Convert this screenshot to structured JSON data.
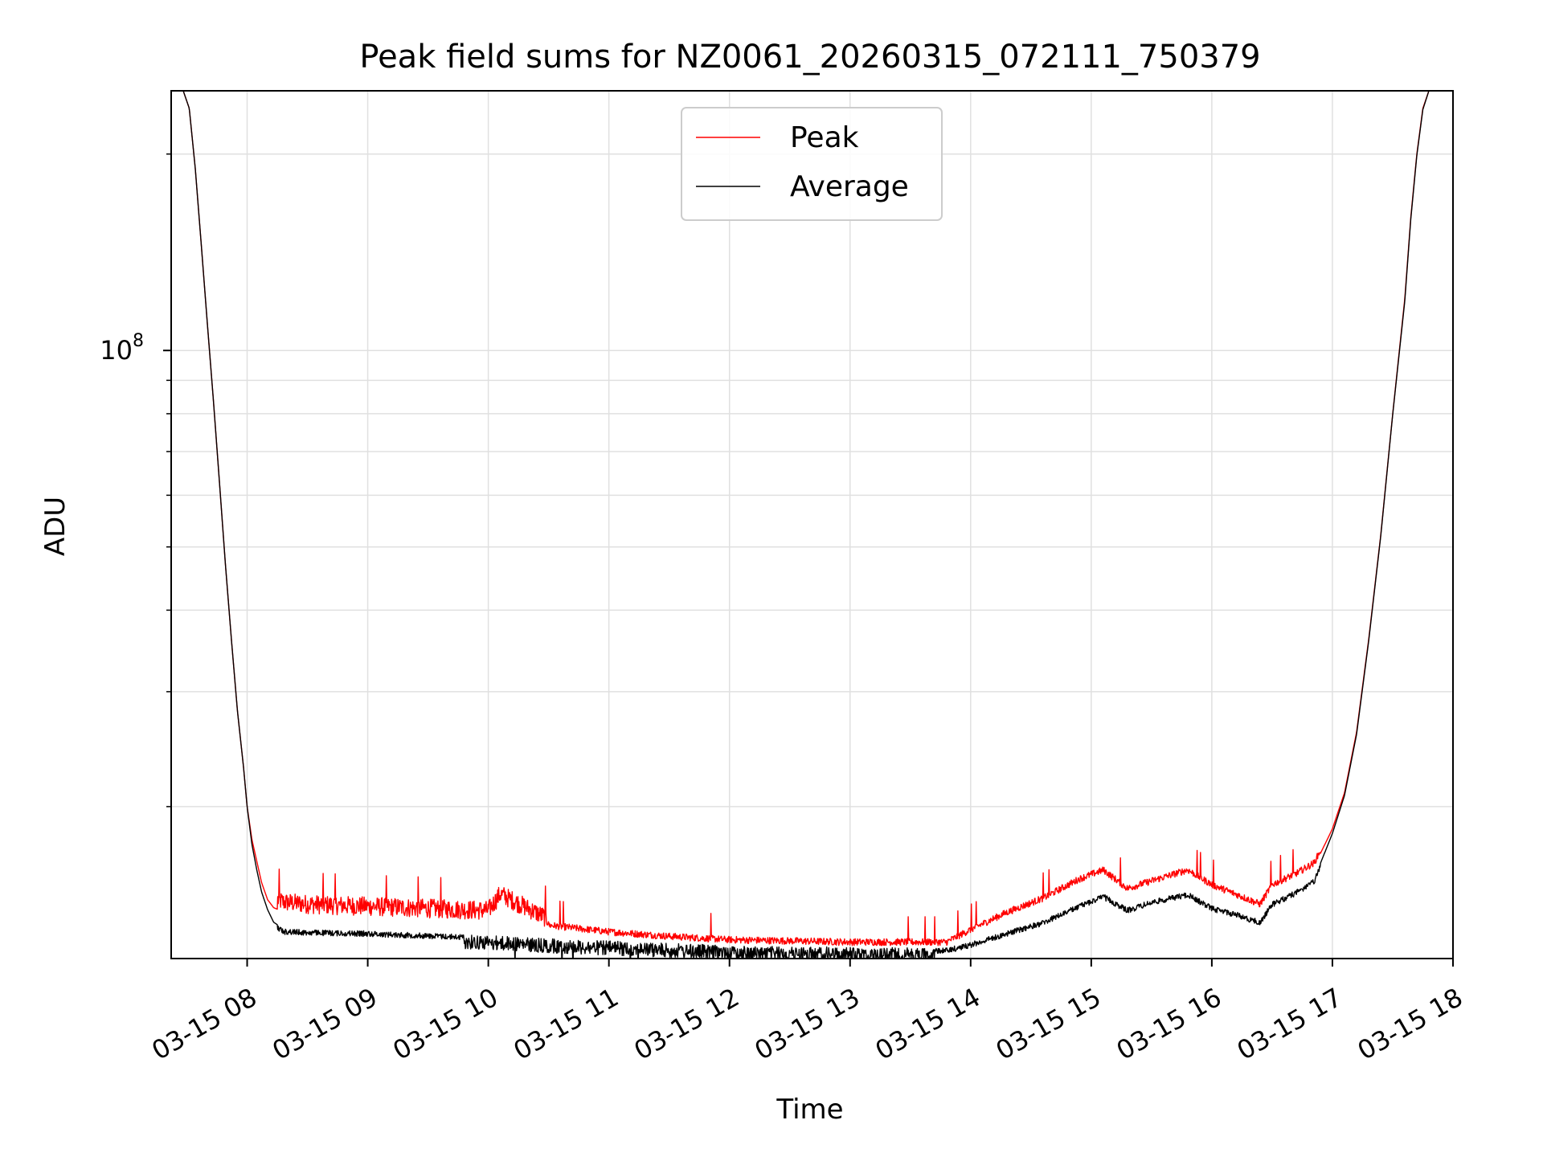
{
  "chart_data": {
    "type": "line",
    "title": "Peak field sums for NZ0061_20260315_072111_750379",
    "xlabel": "Time",
    "ylabel": "ADU",
    "yscale": "log",
    "grid": true,
    "xlim_hours": [
      7.37,
      18.0
    ],
    "ylim": [
      11700000,
      250000000
    ],
    "x_ticks": [
      {
        "hour": 8,
        "label": "03-15 08"
      },
      {
        "hour": 9,
        "label": "03-15 09"
      },
      {
        "hour": 10,
        "label": "03-15 10"
      },
      {
        "hour": 11,
        "label": "03-15 11"
      },
      {
        "hour": 12,
        "label": "03-15 12"
      },
      {
        "hour": 13,
        "label": "03-15 13"
      },
      {
        "hour": 14,
        "label": "03-15 14"
      },
      {
        "hour": 15,
        "label": "03-15 15"
      },
      {
        "hour": 16,
        "label": "03-15 16"
      },
      {
        "hour": 17,
        "label": "03-15 17"
      },
      {
        "hour": 18,
        "label": "03-15 18"
      }
    ],
    "y_major_tick": {
      "value": 100000000,
      "base": "10",
      "exponent": "8"
    },
    "legend": {
      "position": "upper-center",
      "entries": [
        "Peak",
        "Average"
      ]
    },
    "series": [
      {
        "name": "Peak",
        "color": "#ff0000",
        "x_hours": [
          7.47,
          7.52,
          7.57,
          7.62,
          7.67,
          7.72,
          7.77,
          7.82,
          7.87,
          7.92,
          7.97,
          8.0,
          8.04,
          8.08,
          8.12,
          8.17,
          8.22,
          8.3,
          8.5,
          9.0,
          9.5,
          10.0,
          10.1,
          10.5,
          11.0,
          11.5,
          12.0,
          12.5,
          13.0,
          13.5,
          13.8,
          14.0,
          14.3,
          14.6,
          14.9,
          15.1,
          15.3,
          15.5,
          15.8,
          16.0,
          16.2,
          16.4,
          16.5,
          16.7,
          16.85,
          17.0,
          17.1,
          17.2,
          17.3,
          17.4,
          17.5,
          17.6,
          17.65,
          17.7,
          17.75,
          17.8
        ],
        "values": [
          250000000,
          235000000,
          190000000,
          145000000,
          110000000,
          84000000,
          63000000,
          47000000,
          36000000,
          28000000,
          23000000,
          20000000,
          17800000,
          16500000,
          15300000,
          14400000,
          14000000,
          13800000,
          13700000,
          13600000,
          13500000,
          13400000,
          14200000,
          13000000,
          12700000,
          12500000,
          12350000,
          12300000,
          12250000,
          12250000,
          12250000,
          12800000,
          13600000,
          14300000,
          15300000,
          15800000,
          14800000,
          15200000,
          15800000,
          15000000,
          14500000,
          14000000,
          15000000,
          15600000,
          16200000,
          18500000,
          21000000,
          26000000,
          36000000,
          52000000,
          80000000,
          120000000,
          160000000,
          200000000,
          235000000,
          250000000
        ]
      },
      {
        "name": "Average",
        "color": "#000000",
        "x_hours": [
          7.47,
          7.52,
          7.57,
          7.62,
          7.67,
          7.72,
          7.77,
          7.82,
          7.87,
          7.92,
          7.97,
          8.0,
          8.04,
          8.08,
          8.12,
          8.17,
          8.22,
          8.3,
          8.5,
          9.0,
          9.5,
          10.0,
          10.5,
          11.0,
          11.5,
          12.0,
          12.5,
          13.0,
          13.5,
          13.8,
          14.0,
          14.3,
          14.6,
          14.9,
          15.1,
          15.3,
          15.5,
          15.8,
          16.0,
          16.2,
          16.4,
          16.5,
          16.7,
          16.85,
          17.0,
          17.1,
          17.2,
          17.3,
          17.4,
          17.5,
          17.6,
          17.65,
          17.7,
          17.75,
          17.8
        ],
        "values": [
          250000000,
          235000000,
          190000000,
          145000000,
          110000000,
          84000000,
          63000000,
          47000000,
          36000000,
          28000000,
          23000000,
          20000000,
          17500000,
          16000000,
          14800000,
          13900000,
          13300000,
          13000000,
          12950000,
          12900000,
          12800000,
          12700000,
          12550000,
          12450000,
          12350000,
          12250000,
          12200000,
          12180000,
          12150000,
          12150000,
          12400000,
          12900000,
          13400000,
          14200000,
          14700000,
          14000000,
          14400000,
          14800000,
          14100000,
          13800000,
          13400000,
          14300000,
          14900000,
          15500000,
          18200000,
          20800000,
          25800000,
          35800000,
          51800000,
          79800000,
          119000000,
          159000000,
          199000000,
          234000000,
          250000000
        ]
      }
    ]
  }
}
